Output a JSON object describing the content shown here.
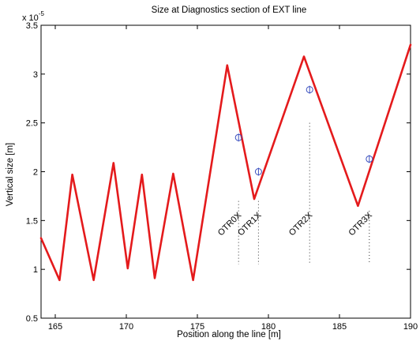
{
  "chart_data": {
    "type": "line",
    "title": "Size at Diagnostics section of EXT line",
    "xlabel": "Position along the line [m]",
    "ylabel": "Vertical size [m]",
    "y_exponent_base": "x 10",
    "y_exponent_power": "-5",
    "xlim": [
      164,
      190
    ],
    "ylim": [
      0.5,
      3.5
    ],
    "x_ticks": [
      165,
      170,
      175,
      180,
      185,
      190
    ],
    "x_tick_labels": [
      "165",
      "170",
      "175",
      "180",
      "185",
      "190"
    ],
    "y_ticks": [
      0.5,
      1,
      1.5,
      2,
      2.5,
      3,
      3.5
    ],
    "y_tick_labels": [
      "0.5",
      "1",
      "1.5",
      "2",
      "2.5",
      "3",
      "3.5"
    ],
    "grid": false,
    "series": [
      {
        "color": "#e41a1c",
        "x": [
          164,
          165.3,
          166.2,
          167.7,
          169.1,
          170.1,
          171.1,
          172.0,
          173.3,
          174.7,
          177.1,
          179.0,
          182.5,
          186.3,
          190
        ],
        "y": [
          1.32,
          0.89,
          1.97,
          0.89,
          2.09,
          1.01,
          1.97,
          0.91,
          1.98,
          0.89,
          3.09,
          1.72,
          3.18,
          1.65,
          3.3
        ]
      }
    ],
    "markers": [
      {
        "x": 177.9,
        "y": 2.35
      },
      {
        "x": 179.3,
        "y": 2.0
      },
      {
        "x": 182.9,
        "y": 2.84
      },
      {
        "x": 187.1,
        "y": 2.13
      }
    ],
    "marker_color": "#3a4fbf",
    "annotations": [
      {
        "text": "OTR0X",
        "x": 177.9,
        "y_top": 1.7
      },
      {
        "text": "OTR1X",
        "x": 179.3,
        "y_top": 1.7
      },
      {
        "text": "OTR2X",
        "x": 182.9,
        "y_top": 2.5
      },
      {
        "text": "OTR3X",
        "x": 187.1,
        "y_top": 1.6
      }
    ]
  }
}
